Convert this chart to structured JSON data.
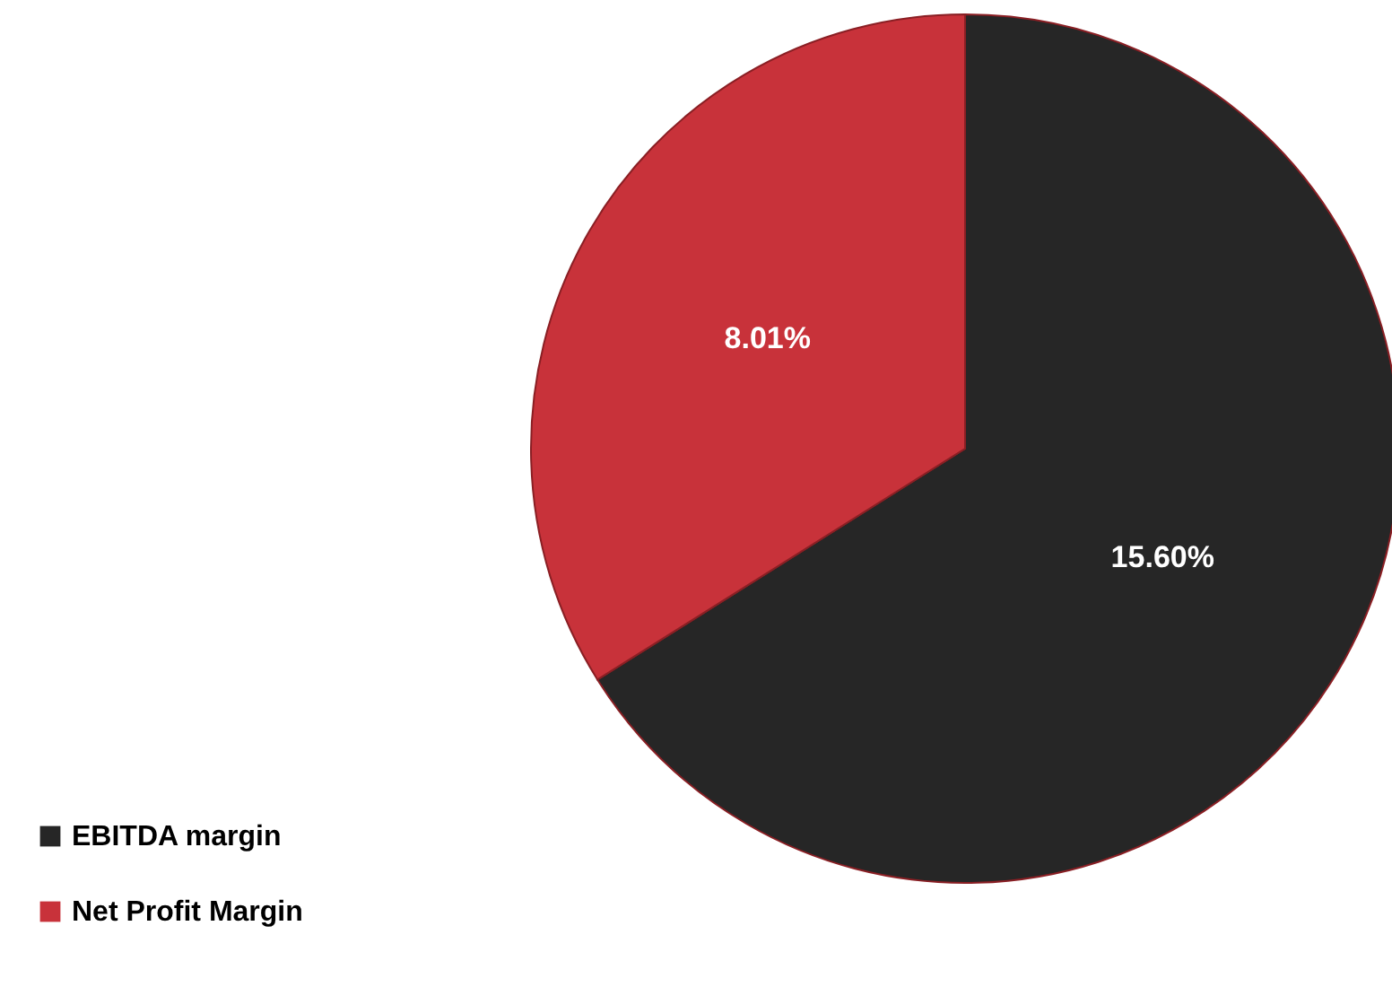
{
  "chart_data": {
    "type": "pie",
    "categories": [
      "EBITDA margin",
      "Net Profit Margin"
    ],
    "values": [
      15.6,
      8.01
    ],
    "colors": [
      "#262626",
      "#c8323a"
    ],
    "value_labels": [
      "15.60%",
      "8.01%"
    ],
    "legend": "bottom left"
  }
}
